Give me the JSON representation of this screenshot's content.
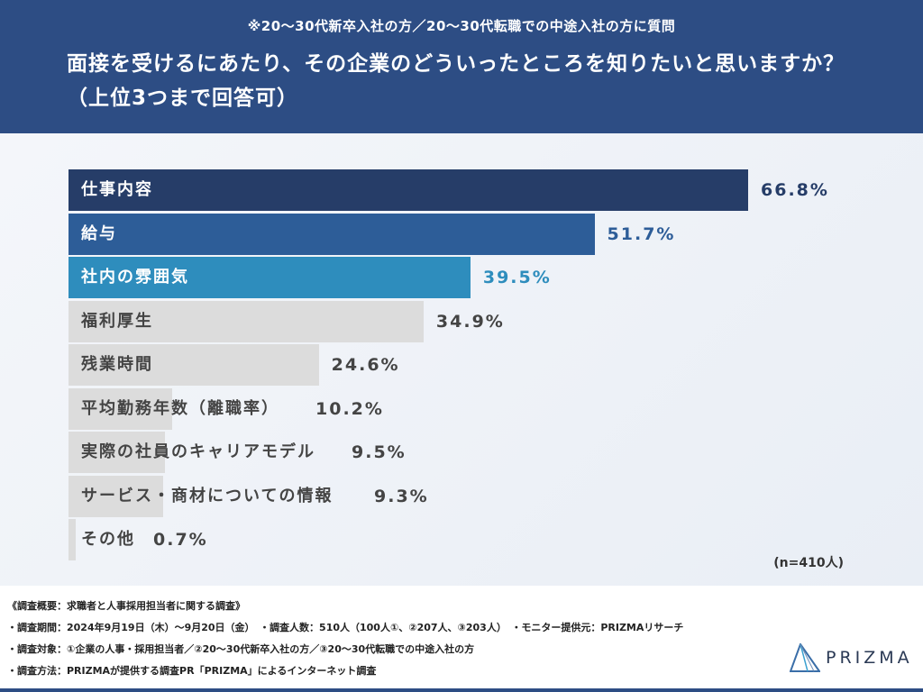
{
  "header": {
    "subtitle": "※20〜30代新卒入社の方／20〜30代転職での中途入社の方に質問",
    "title": "面接を受けるにあたり、その企業のどういったところを知りたいと思いますか？（上位3つまで回答可）"
  },
  "chart_data": {
    "type": "bar",
    "orientation": "horizontal",
    "categories": [
      "仕事内容",
      "給与",
      "社内の雰囲気",
      "福利厚生",
      "残業時間",
      "平均勤務年数（離職率）",
      "実際の社員のキャリアモデル",
      "サービス・商材についての情報",
      "その他"
    ],
    "values": [
      66.8,
      51.7,
      39.5,
      34.9,
      24.6,
      10.2,
      9.5,
      9.3,
      0.7
    ],
    "value_labels": [
      "66.8%",
      "51.7%",
      "39.5%",
      "34.9%",
      "24.6%",
      "10.2%",
      "9.5%",
      "9.3%",
      "0.7%"
    ],
    "unit": "%",
    "bar_colors": [
      "#263d68",
      "#2d5d98",
      "#2e8dbd",
      "#dcdcdc",
      "#dcdcdc",
      "#dcdcdc",
      "#dcdcdc",
      "#dcdcdc",
      "#dcdcdc"
    ],
    "value_colors": [
      "#263d68",
      "#2d5d98",
      "#2e8dbd",
      "#444444",
      "#444444",
      "#444444",
      "#444444",
      "#444444",
      "#444444"
    ],
    "label_colors": [
      "#ffffff",
      "#ffffff",
      "#ffffff",
      "#444444",
      "#444444",
      "#444444",
      "#444444",
      "#444444",
      "#444444"
    ],
    "xlim": [
      0,
      100
    ],
    "grid": false,
    "sample_size": "(n=410人)"
  },
  "footer": {
    "lines": [
      "《調査概要：求職者と人事採用担当者に関する調査》",
      "・調査期間：2024年9月19日（木）〜9月20日（金）　・調査人数：510人（100人①、②207人、③203人）　・モニター提供元：PRIZMAリサーチ",
      "・調査対象：①企業の人事・採用担当者／②20〜30代新卒入社の方／③20〜30代転職での中途入社の方",
      "・調査方法：PRIZMAが提供する調査PR「PRIZMA」によるインターネット調査"
    ],
    "logo": "PRIZMA"
  }
}
